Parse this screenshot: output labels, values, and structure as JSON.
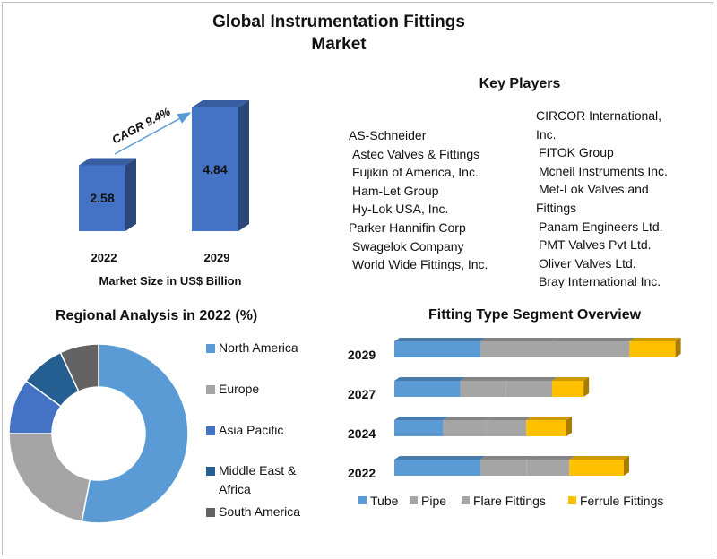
{
  "title_line1": "Global Instrumentation  Fittings",
  "title_line2": "Market",
  "market_size": {
    "caption": "Market Size in US$ Billion",
    "cagr_label": "CAGR 9.4%"
  },
  "key_players": {
    "title": "Key Players",
    "left": [
      "AS-Schneider",
      "Astec Valves & Fittings",
      "Fujikin of America, Inc.",
      "Ham-Let Group",
      "Hy-Lok USA, Inc.",
      "Parker Hannifin Corp",
      "Swagelok Company",
      "World Wide Fittings, Inc."
    ],
    "right": [
      "CIRCOR International,",
      "Inc.",
      "FITOK Group",
      "Mcneil Instruments Inc.",
      "Met-Lok Valves and",
      "Fittings",
      "Panam Engineers Ltd.",
      "PMT Valves Pvt Ltd.",
      "Oliver Valves Ltd.",
      "Bray International Inc."
    ]
  },
  "regional": {
    "title": "Regional Analysis in 2022 (%)",
    "legend": [
      "North America",
      "Europe",
      "Asia Pacific",
      "Middle East &",
      "Africa",
      "South America"
    ]
  },
  "fitting": {
    "title": "Fitting Type Segment Overview"
  },
  "chart_data": [
    {
      "type": "bar",
      "categories": [
        "2022",
        "2029"
      ],
      "values": [
        2.58,
        4.84
      ],
      "xlabel": "Market Size in US$ Billion",
      "annotation": "CAGR 9.4%",
      "color": "#4472c4"
    },
    {
      "type": "pie",
      "variant": "donut",
      "labels": [
        "North America",
        "Europe",
        "Asia Pacific",
        "Middle East & Africa",
        "South America"
      ],
      "values": [
        53,
        22,
        10,
        8,
        7
      ],
      "colors": [
        "#5b9bd5",
        "#a5a5a5",
        "#4472c4",
        "#255e91",
        "#636363"
      ],
      "legend_position": "right"
    },
    {
      "type": "bar",
      "orientation": "horizontal",
      "stacked": true,
      "categories": [
        "2029",
        "2027",
        "2024",
        "2022"
      ],
      "series": [
        {
          "name": "Tube",
          "values": [
            30,
            23,
            17,
            30
          ],
          "color": "#5b9bd5"
        },
        {
          "name": "Pipe",
          "values": [
            25,
            16,
            15,
            16
          ],
          "color": "#a5a5a5"
        },
        {
          "name": "Flare Fittings",
          "values": [
            27,
            16,
            14,
            15
          ],
          "color": "#a5a5a5"
        },
        {
          "name": "Ferrule Fittings",
          "values": [
            16,
            11,
            14,
            19
          ],
          "color": "#ffc000"
        }
      ],
      "legend_position": "bottom"
    }
  ]
}
